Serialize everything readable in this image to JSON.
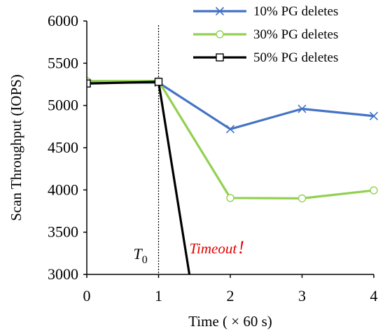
{
  "chart_data": {
    "type": "line",
    "title": "",
    "xlabel": "Time ( × 60 s)",
    "ylabel": "Scan Throughput (IOPS)",
    "xlim": [
      0,
      4
    ],
    "ylim": [
      3000,
      6000
    ],
    "x_ticks": [
      "0",
      "1",
      "2",
      "3",
      "4"
    ],
    "y_ticks": [
      "3000",
      "3500",
      "4000",
      "4500",
      "5000",
      "5500",
      "6000"
    ],
    "grid": false,
    "legend_position": "top-right",
    "series": [
      {
        "name": "10% PG deletes",
        "color": "#4472C4",
        "marker": "x",
        "x": [
          0,
          1,
          2,
          3,
          4
        ],
        "y": [
          5270,
          5270,
          4720,
          4960,
          4875
        ]
      },
      {
        "name": "30% PG deletes",
        "color": "#92D050",
        "marker": "circle",
        "x": [
          0,
          1,
          2,
          3,
          4
        ],
        "y": [
          5290,
          5290,
          3905,
          3900,
          3995
        ]
      },
      {
        "name": "50% PG deletes",
        "color": "#000000",
        "marker": "square",
        "x": [
          0,
          1,
          1.43
        ],
        "y": [
          5260,
          5280,
          3000
        ]
      }
    ],
    "annotations": {
      "vline_x": 1,
      "t0_label": "T",
      "t0_subscript": "0",
      "timeout_label": "Timeout",
      "timeout_mark": "!"
    }
  }
}
